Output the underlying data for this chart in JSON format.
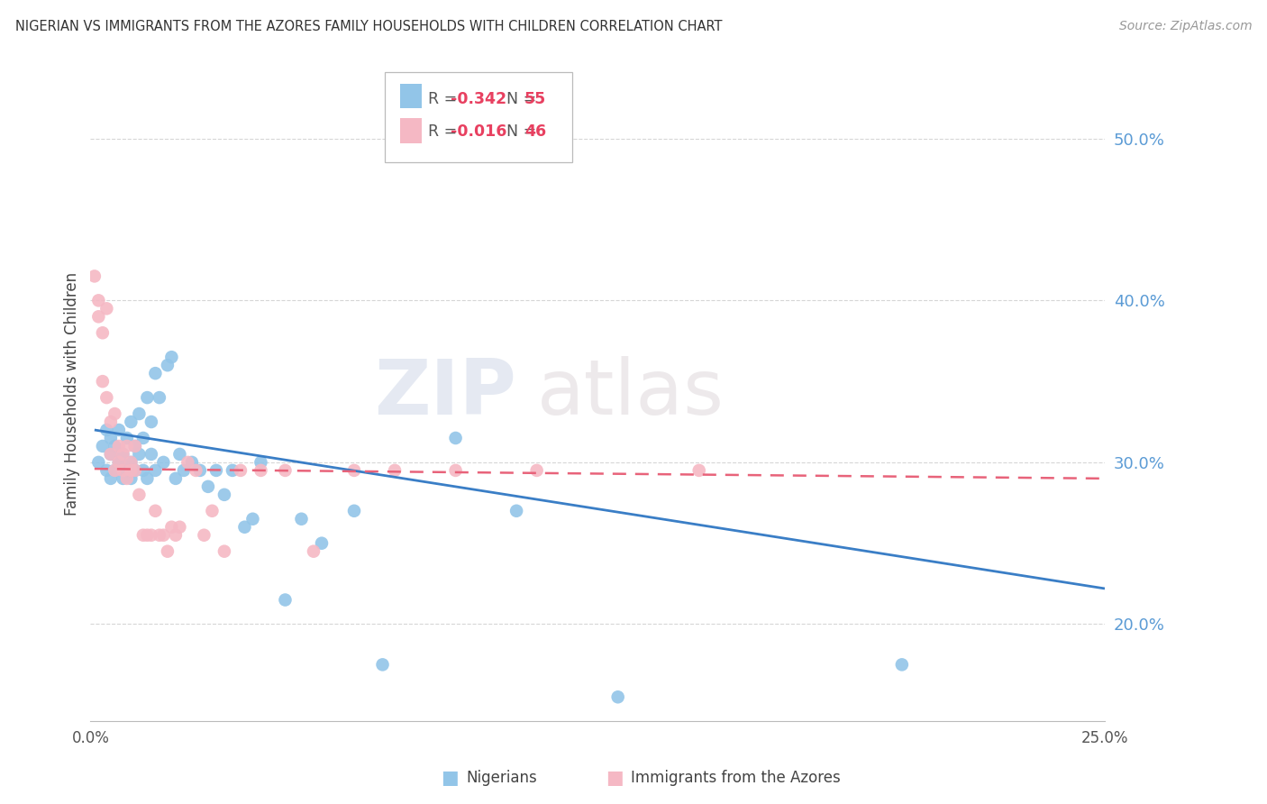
{
  "title": "NIGERIAN VS IMMIGRANTS FROM THE AZORES FAMILY HOUSEHOLDS WITH CHILDREN CORRELATION CHART",
  "source": "Source: ZipAtlas.com",
  "ylabel": "Family Households with Children",
  "y_ticks": [
    0.2,
    0.3,
    0.4,
    0.5
  ],
  "y_tick_labels": [
    "20.0%",
    "30.0%",
    "40.0%",
    "50.0%"
  ],
  "xlim": [
    0.0,
    0.25
  ],
  "ylim": [
    0.14,
    0.545
  ],
  "blue_R": "-0.342",
  "blue_N": "55",
  "pink_R": "-0.016",
  "pink_N": "46",
  "blue_color": "#92C5E8",
  "pink_color": "#F5B8C4",
  "blue_line_color": "#3A7EC6",
  "pink_line_color": "#E8637A",
  "legend_label_blue": "Nigerians",
  "legend_label_pink": "Immigrants from the Azores",
  "watermark_zip": "ZIP",
  "watermark_atlas": "atlas",
  "blue_x": [
    0.002,
    0.003,
    0.004,
    0.004,
    0.005,
    0.005,
    0.005,
    0.006,
    0.006,
    0.007,
    0.007,
    0.008,
    0.008,
    0.009,
    0.009,
    0.01,
    0.01,
    0.01,
    0.011,
    0.011,
    0.012,
    0.012,
    0.013,
    0.013,
    0.014,
    0.014,
    0.015,
    0.015,
    0.016,
    0.016,
    0.017,
    0.018,
    0.019,
    0.02,
    0.021,
    0.022,
    0.023,
    0.025,
    0.027,
    0.029,
    0.031,
    0.033,
    0.035,
    0.038,
    0.04,
    0.042,
    0.048,
    0.052,
    0.057,
    0.065,
    0.072,
    0.09,
    0.105,
    0.13,
    0.2
  ],
  "blue_y": [
    0.3,
    0.31,
    0.295,
    0.32,
    0.305,
    0.29,
    0.315,
    0.295,
    0.31,
    0.3,
    0.32,
    0.29,
    0.305,
    0.315,
    0.295,
    0.3,
    0.325,
    0.29,
    0.31,
    0.295,
    0.305,
    0.33,
    0.295,
    0.315,
    0.34,
    0.29,
    0.305,
    0.325,
    0.355,
    0.295,
    0.34,
    0.3,
    0.36,
    0.365,
    0.29,
    0.305,
    0.295,
    0.3,
    0.295,
    0.285,
    0.295,
    0.28,
    0.295,
    0.26,
    0.265,
    0.3,
    0.215,
    0.265,
    0.25,
    0.27,
    0.175,
    0.315,
    0.27,
    0.155,
    0.175
  ],
  "pink_x": [
    0.001,
    0.002,
    0.002,
    0.003,
    0.003,
    0.004,
    0.004,
    0.005,
    0.005,
    0.006,
    0.006,
    0.007,
    0.007,
    0.008,
    0.008,
    0.009,
    0.009,
    0.01,
    0.01,
    0.011,
    0.011,
    0.012,
    0.013,
    0.014,
    0.015,
    0.016,
    0.017,
    0.018,
    0.019,
    0.02,
    0.021,
    0.022,
    0.024,
    0.026,
    0.028,
    0.03,
    0.033,
    0.037,
    0.042,
    0.048,
    0.055,
    0.065,
    0.075,
    0.09,
    0.11,
    0.15
  ],
  "pink_y": [
    0.415,
    0.39,
    0.4,
    0.35,
    0.38,
    0.395,
    0.34,
    0.325,
    0.305,
    0.33,
    0.295,
    0.31,
    0.3,
    0.295,
    0.305,
    0.29,
    0.31,
    0.3,
    0.295,
    0.295,
    0.31,
    0.28,
    0.255,
    0.255,
    0.255,
    0.27,
    0.255,
    0.255,
    0.245,
    0.26,
    0.255,
    0.26,
    0.3,
    0.295,
    0.255,
    0.27,
    0.245,
    0.295,
    0.295,
    0.295,
    0.245,
    0.295,
    0.295,
    0.295,
    0.295,
    0.295
  ],
  "blue_line_x": [
    0.001,
    0.25
  ],
  "blue_line_y": [
    0.32,
    0.222
  ],
  "pink_line_x": [
    0.001,
    0.25
  ],
  "pink_line_y": [
    0.296,
    0.29
  ]
}
